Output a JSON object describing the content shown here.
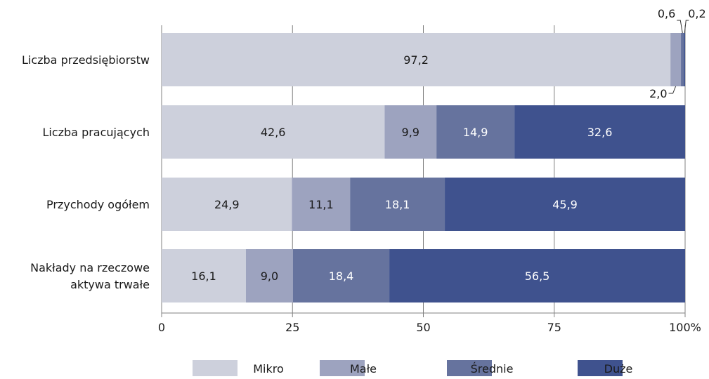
{
  "chart_data": {
    "type": "bar",
    "orientation": "horizontal",
    "stacked": true,
    "categories": [
      [
        "Liczba przedsiębiorstw"
      ],
      [
        "Liczba pracujących"
      ],
      [
        "Przychody ogółem"
      ],
      [
        "Nakłady na rzeczowe",
        "aktywa trwałe"
      ]
    ],
    "series": [
      {
        "name": "Mikro",
        "color": "#cdd0dc",
        "values": [
          97.2,
          42.6,
          24.9,
          16.1
        ],
        "labels": [
          "97,2",
          "42,6",
          "24,9",
          "16,1"
        ]
      },
      {
        "name": "Małe",
        "color": "#9da3bf",
        "values": [
          2.0,
          9.9,
          11.1,
          9.0
        ],
        "labels": [
          "2,0",
          "9,9",
          "11,1",
          "9,0"
        ]
      },
      {
        "name": "Średnie",
        "color": "#66739e",
        "values": [
          0.6,
          14.9,
          18.1,
          18.4
        ],
        "labels": [
          "0,6",
          "14,9",
          "18,1",
          "18,4"
        ]
      },
      {
        "name": "Duże",
        "color": "#3f528e",
        "values": [
          0.2,
          32.6,
          45.9,
          56.5
        ],
        "labels": [
          "0,2",
          "32,6",
          "45,9",
          "56,5"
        ]
      }
    ],
    "xlim": [
      0,
      100
    ],
    "xticks": [
      0,
      25,
      50,
      75,
      100
    ],
    "xtick_labels": [
      "0",
      "25",
      "50",
      "75",
      "100%"
    ],
    "grid": true,
    "legend_position": "bottom",
    "callouts": [
      {
        "category": 0,
        "series": 1,
        "label": "2,0",
        "side": "below"
      },
      {
        "category": 0,
        "series": 2,
        "label": "0,6",
        "side": "above"
      },
      {
        "category": 0,
        "series": 3,
        "label": "0,2",
        "side": "above"
      }
    ]
  }
}
